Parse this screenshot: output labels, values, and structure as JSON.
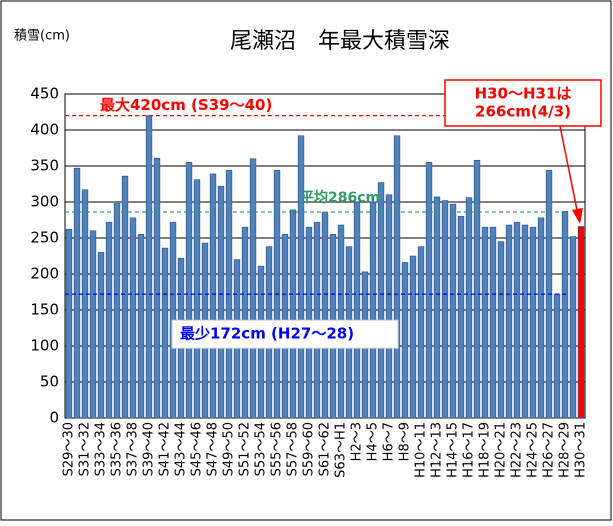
{
  "chart_data": {
    "type": "bar",
    "title": "尾瀬沼　年最大積雪深",
    "y_axis_label": "積雪(cm)",
    "categories": [
      "S29～30",
      null,
      "S31～32",
      null,
      "S33～34",
      null,
      "S35～36",
      null,
      "S37～38",
      null,
      "S39～40",
      null,
      "S41～42",
      null,
      "S43～44",
      null,
      "S45～46",
      null,
      "S47～48",
      null,
      "S49～50",
      null,
      "S51～52",
      null,
      "S53～54",
      null,
      "S55～56",
      null,
      "S57～58",
      null,
      "S59～60",
      null,
      "S61～62",
      null,
      "S63～H1",
      null,
      "H2～3",
      null,
      "H4～5",
      null,
      "H6～7",
      null,
      "H8～9",
      null,
      "H10～11",
      null,
      "H12～13",
      null,
      "H14～15",
      null,
      "H16～17",
      null,
      "H18～19",
      null,
      "H20～21",
      null,
      "H22～23",
      null,
      "H24～25",
      null,
      "H26～27",
      null,
      "H28～29",
      null,
      "H30～31"
    ],
    "values": [
      262,
      347,
      317,
      260,
      230,
      272,
      298,
      336,
      278,
      255,
      420,
      361,
      236,
      272,
      222,
      355,
      331,
      243,
      339,
      322,
      344,
      220,
      265,
      360,
      211,
      238,
      344,
      255,
      289,
      392,
      265,
      272,
      286,
      255,
      268,
      238,
      300,
      203,
      300,
      327,
      310,
      392,
      216,
      225,
      238,
      355,
      307,
      302,
      297,
      280,
      306,
      358,
      265,
      265,
      245,
      268,
      272,
      268,
      265,
      278,
      344,
      172,
      287,
      252,
      266
    ],
    "colors": [
      "#4f81bd",
      "#4f81bd",
      "#4f81bd",
      "#4f81bd",
      "#4f81bd",
      "#4f81bd",
      "#4f81bd",
      "#4f81bd",
      "#4f81bd",
      "#4f81bd",
      "#4f81bd",
      "#4f81bd",
      "#4f81bd",
      "#4f81bd",
      "#4f81bd",
      "#4f81bd",
      "#4f81bd",
      "#4f81bd",
      "#4f81bd",
      "#4f81bd",
      "#4f81bd",
      "#4f81bd",
      "#4f81bd",
      "#4f81bd",
      "#4f81bd",
      "#4f81bd",
      "#4f81bd",
      "#4f81bd",
      "#4f81bd",
      "#4f81bd",
      "#4f81bd",
      "#4f81bd",
      "#4f81bd",
      "#4f81bd",
      "#4f81bd",
      "#4f81bd",
      "#4f81bd",
      "#4f81bd",
      "#4f81bd",
      "#4f81bd",
      "#4f81bd",
      "#4f81bd",
      "#4f81bd",
      "#4f81bd",
      "#4f81bd",
      "#4f81bd",
      "#4f81bd",
      "#4f81bd",
      "#4f81bd",
      "#4f81bd",
      "#4f81bd",
      "#4f81bd",
      "#4f81bd",
      "#4f81bd",
      "#4f81bd",
      "#4f81bd",
      "#4f81bd",
      "#4f81bd",
      "#4f81bd",
      "#4f81bd",
      "#4f81bd",
      "#4f81bd",
      "#4f81bd",
      "#4f81bd",
      "#ff0000"
    ],
    "ylim": [
      0,
      450
    ],
    "yticks": [
      0,
      50,
      100,
      150,
      200,
      250,
      300,
      350,
      400,
      450
    ],
    "grid": true,
    "reference_lines": [
      {
        "value": 420,
        "label": "最大420cm (S39～40)",
        "color": "#ff0000"
      },
      {
        "value": 286,
        "label": "平均286cm",
        "color": "#339966"
      },
      {
        "value": 172,
        "label": "最少172cm (H27～28)",
        "color": "#0000ff"
      }
    ],
    "callout": [
      "H30～H31は",
      "266cm(4/3)"
    ]
  }
}
